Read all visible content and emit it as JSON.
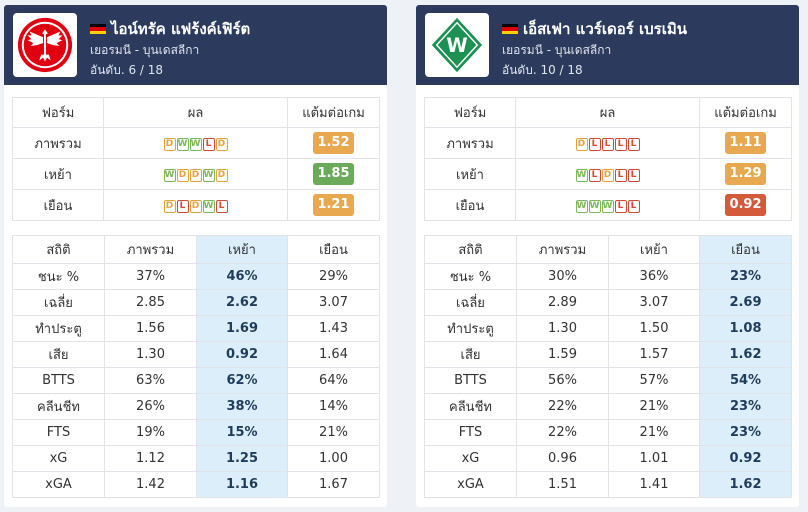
{
  "colors": {
    "win": "#7ab85a",
    "draw": "#e3a43c",
    "loss": "#d04a35",
    "header_bg": "#2c3a5e",
    "highlight": "#dbeefa",
    "ppg_good": "#6aaa5a",
    "ppg_mid": "#e8a850",
    "ppg_bad": "#d45a3c"
  },
  "labels": {
    "form": "ฟอร์ม",
    "result": "ผล",
    "ppg": "แต้มต่อเกม",
    "overall": "ภาพรวม",
    "home": "เหย้า",
    "away": "เยือน",
    "stats": "สถิติ"
  },
  "teams": [
    {
      "name": "ไอน์ทรัค แฟร้งค์เฟิร์ต",
      "league": "เยอรมนี - บุนเดสลีกา",
      "rank": "อันดับ. 6 / 18",
      "logo_icon": "eagle-crest-icon",
      "form_rows": [
        {
          "label": "ภาพรวม",
          "results": [
            "D",
            "W",
            "W",
            "L",
            "D"
          ],
          "ppg": "1.52",
          "ppg_color": "#e8a850"
        },
        {
          "label": "เหย้า",
          "results": [
            "W",
            "D",
            "D",
            "W",
            "D"
          ],
          "ppg": "1.85",
          "ppg_color": "#6aaa5a"
        },
        {
          "label": "เยือน",
          "results": [
            "D",
            "L",
            "D",
            "W",
            "L"
          ],
          "ppg": "1.21",
          "ppg_color": "#e8a850"
        }
      ],
      "highlight_col": 1,
      "stats": [
        {
          "label": "ชนะ %",
          "overall": "37%",
          "home": "46%",
          "away": "29%"
        },
        {
          "label": "เฉลี่ย",
          "overall": "2.85",
          "home": "2.62",
          "away": "3.07"
        },
        {
          "label": "ทำประตู",
          "overall": "1.56",
          "home": "1.69",
          "away": "1.43"
        },
        {
          "label": "เสีย",
          "overall": "1.30",
          "home": "0.92",
          "away": "1.64"
        },
        {
          "label": "BTTS",
          "overall": "63%",
          "home": "62%",
          "away": "64%"
        },
        {
          "label": "คลีนชีท",
          "overall": "26%",
          "home": "38%",
          "away": "14%"
        },
        {
          "label": "FTS",
          "overall": "19%",
          "home": "15%",
          "away": "21%"
        },
        {
          "label": "xG",
          "overall": "1.12",
          "home": "1.25",
          "away": "1.00"
        },
        {
          "label": "xGA",
          "overall": "1.42",
          "home": "1.16",
          "away": "1.67"
        }
      ]
    },
    {
      "name": "เอ็สเฟา แวร์เดอร์ เบรเมิน",
      "league": "เยอรมนี - บุนเดสลีกา",
      "rank": "อันดับ. 10 / 18",
      "logo_icon": "w-diamond-crest-icon",
      "form_rows": [
        {
          "label": "ภาพรวม",
          "results": [
            "D",
            "L",
            "L",
            "L",
            "L"
          ],
          "ppg": "1.11",
          "ppg_color": "#e8a850"
        },
        {
          "label": "เหย้า",
          "results": [
            "W",
            "L",
            "D",
            "L",
            "L"
          ],
          "ppg": "1.29",
          "ppg_color": "#e8a850"
        },
        {
          "label": "เยือน",
          "results": [
            "W",
            "W",
            "W",
            "L",
            "L"
          ],
          "ppg": "0.92",
          "ppg_color": "#d45a3c"
        }
      ],
      "highlight_col": 2,
      "stats": [
        {
          "label": "ชนะ %",
          "overall": "30%",
          "home": "36%",
          "away": "23%"
        },
        {
          "label": "เฉลี่ย",
          "overall": "2.89",
          "home": "3.07",
          "away": "2.69"
        },
        {
          "label": "ทำประตู",
          "overall": "1.30",
          "home": "1.50",
          "away": "1.08"
        },
        {
          "label": "เสีย",
          "overall": "1.59",
          "home": "1.57",
          "away": "1.62"
        },
        {
          "label": "BTTS",
          "overall": "56%",
          "home": "57%",
          "away": "54%"
        },
        {
          "label": "คลีนชีท",
          "overall": "22%",
          "home": "21%",
          "away": "23%"
        },
        {
          "label": "FTS",
          "overall": "22%",
          "home": "21%",
          "away": "23%"
        },
        {
          "label": "xG",
          "overall": "0.96",
          "home": "1.01",
          "away": "0.92"
        },
        {
          "label": "xGA",
          "overall": "1.51",
          "home": "1.41",
          "away": "1.62"
        }
      ]
    }
  ]
}
